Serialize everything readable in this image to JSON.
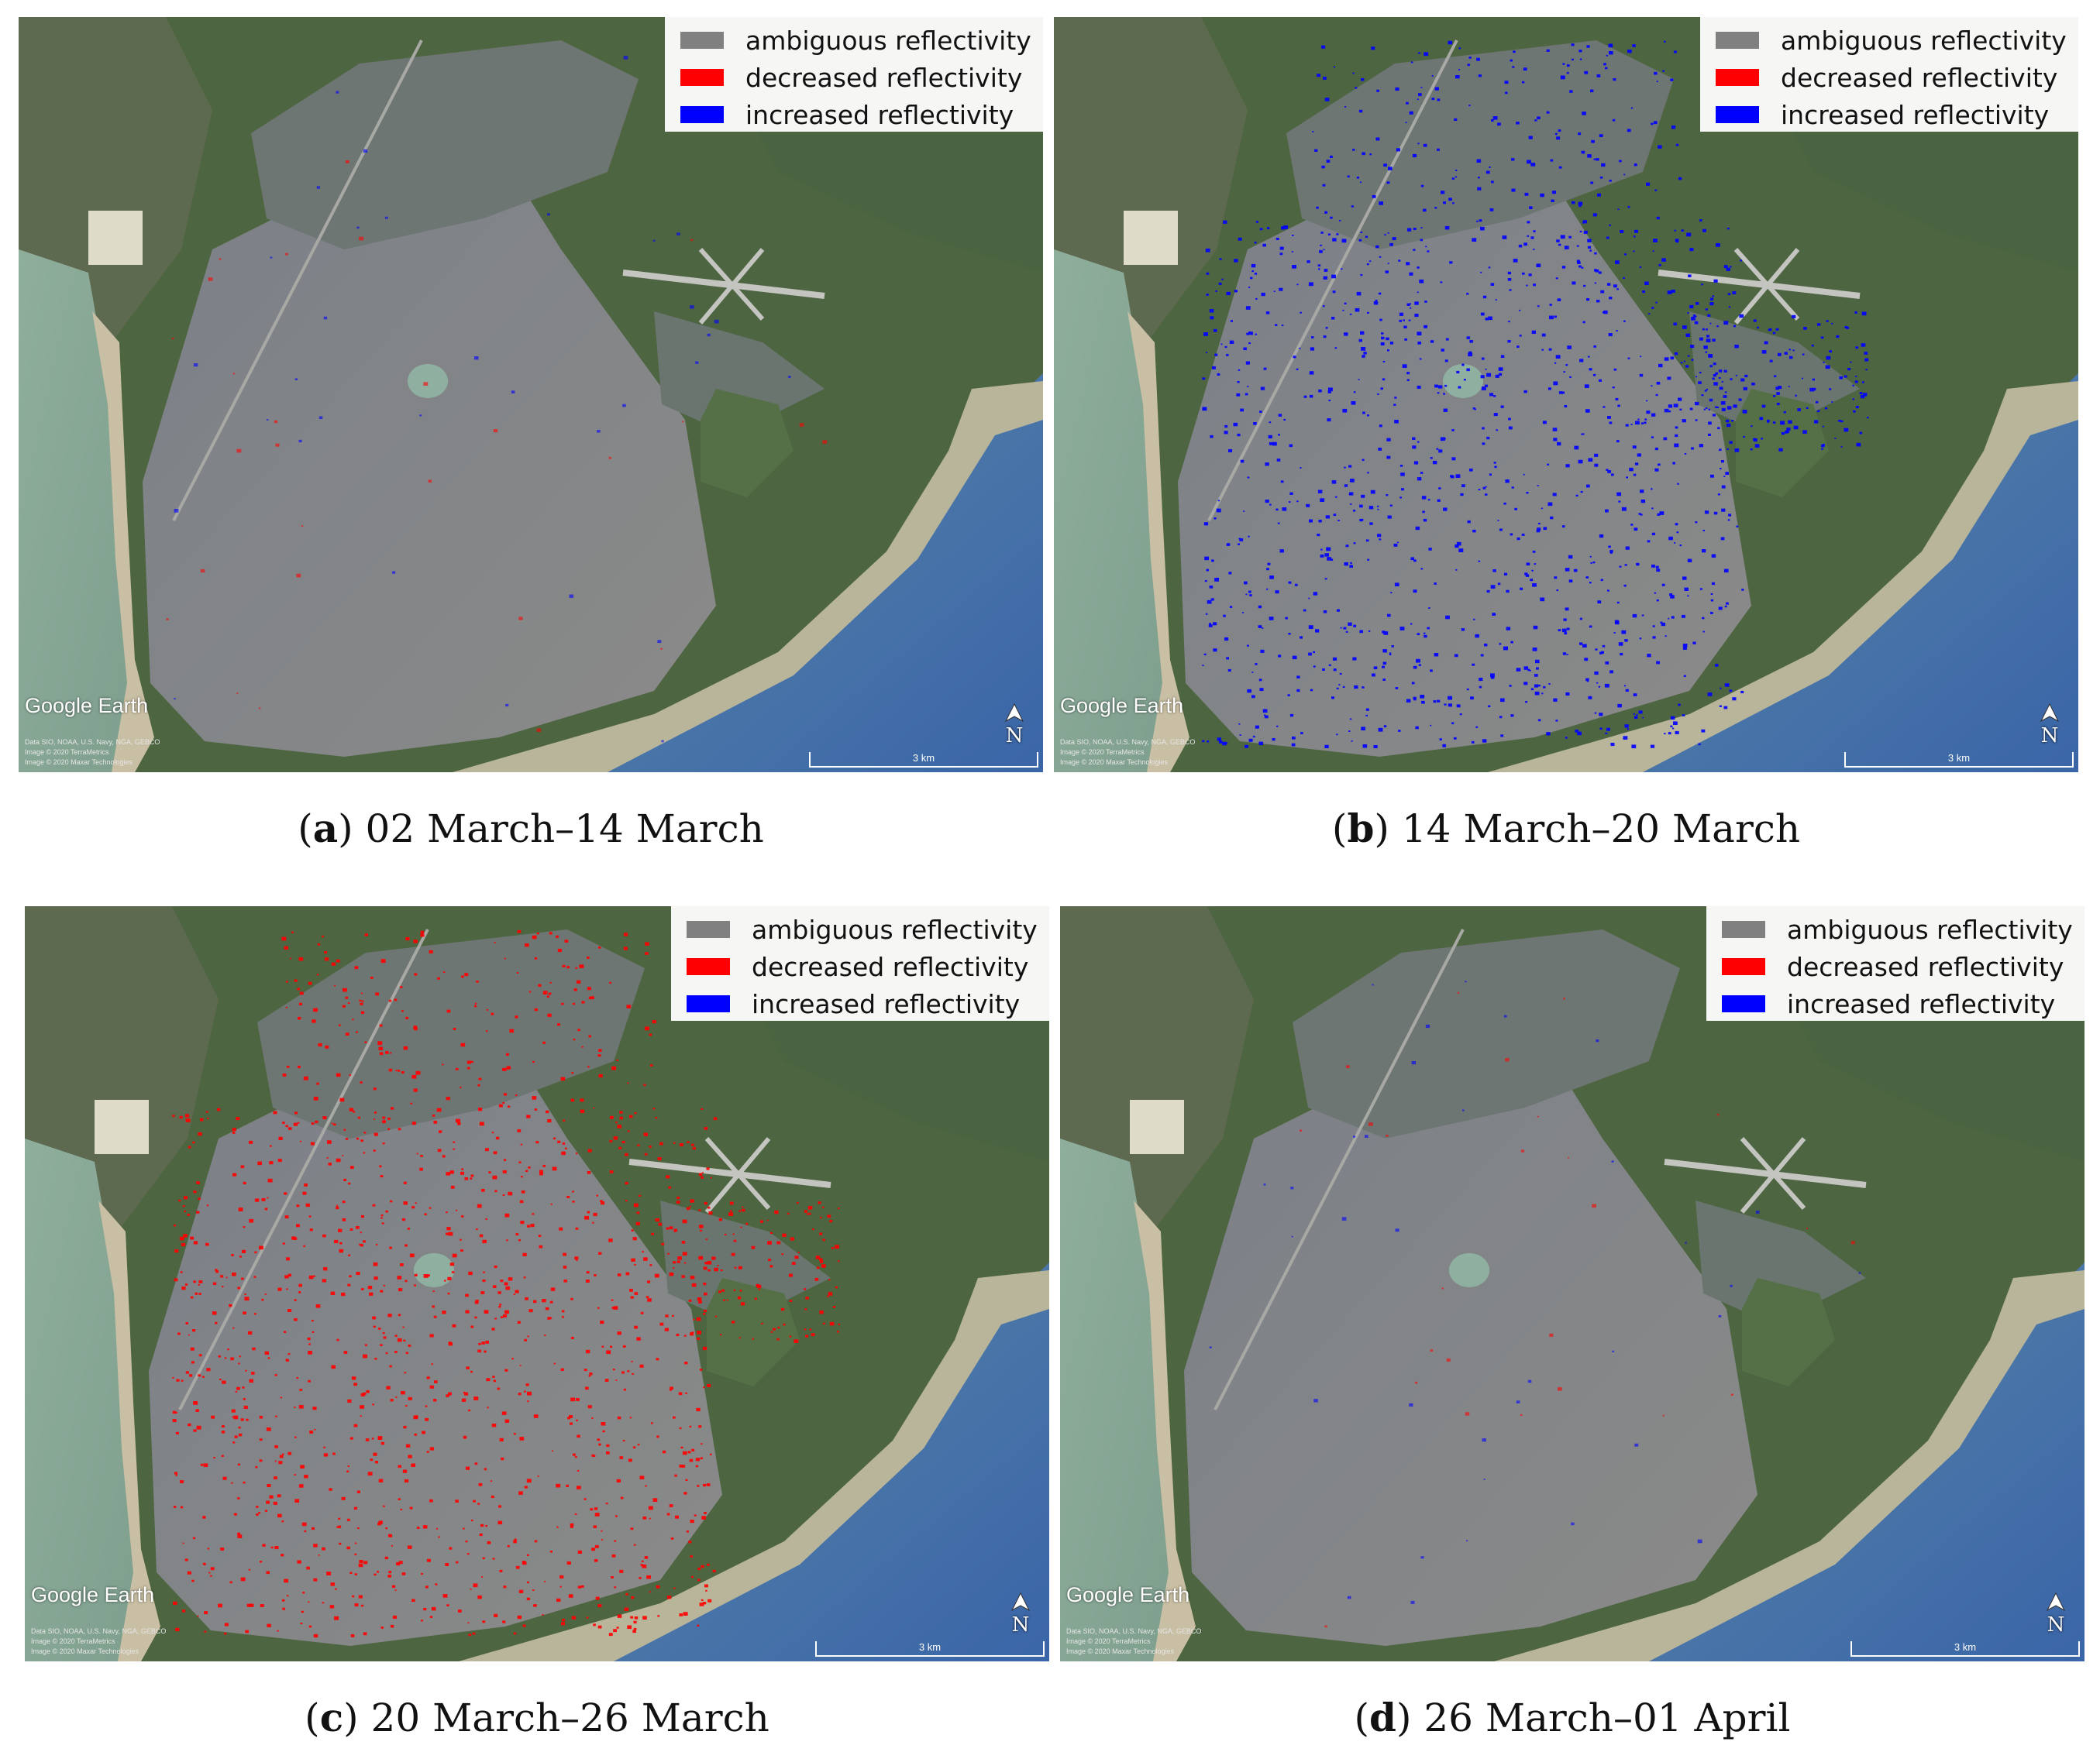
{
  "legend": {
    "items": [
      {
        "label": "ambiguous reflectivity",
        "color": "#808080"
      },
      {
        "label": "decreased reflectivity",
        "color": "#ff0000"
      },
      {
        "label": "increased reflectivity",
        "color": "#0000ff"
      }
    ]
  },
  "map_labels": {
    "logo": "Google Earth",
    "credits": [
      "Data SIO, NOAA, U.S. Navy, NGA, GEBCO",
      "Image © 2020 TerraMetrics",
      "Image © 2020 Maxar Technologies"
    ],
    "north": "N",
    "scale": "3 km"
  },
  "panels": [
    {
      "id": "a",
      "letter": "a",
      "period": " 02 March–14 March",
      "change": "none"
    },
    {
      "id": "b",
      "letter": "b",
      "period": " 14 March–20 March",
      "change": "increased"
    },
    {
      "id": "c",
      "letter": "c",
      "period": " 20 March–26 March",
      "change": "decreased"
    },
    {
      "id": "d",
      "letter": "d",
      "period": " 26 March–01 April",
      "change": "none"
    }
  ],
  "colors": {
    "ambiguous": "#808080",
    "decreased": "#ff0000",
    "increased": "#0000ff"
  }
}
